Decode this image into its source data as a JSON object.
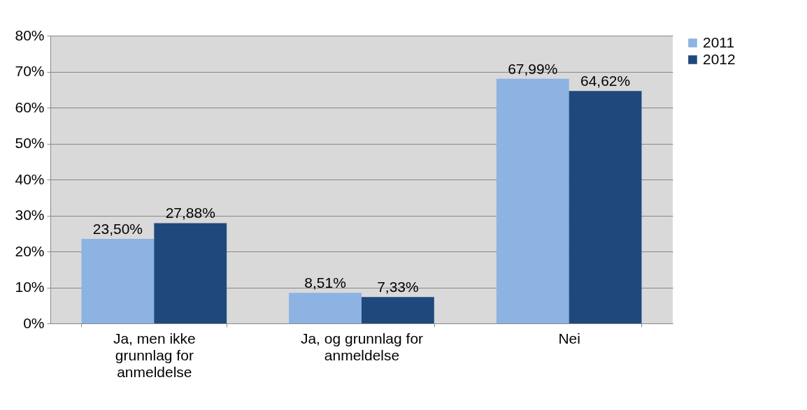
{
  "chart_data": {
    "type": "bar",
    "categories": [
      "Ja, men ikke grunnlag for anmeldelse",
      "Ja, og grunnlag for anmeldelse",
      "Nei"
    ],
    "series": [
      {
        "name": "2011",
        "color": "#8db3e2",
        "values": [
          23.5,
          8.51,
          67.99
        ],
        "value_labels": [
          "23,50%",
          "8,51%",
          "67,99%"
        ]
      },
      {
        "name": "2012",
        "color": "#1f497d",
        "values": [
          27.88,
          7.33,
          64.62
        ],
        "value_labels": [
          "27,88%",
          "7,33%",
          "64,62%"
        ]
      }
    ],
    "ylim": [
      0,
      80
    ],
    "yticks": [
      {
        "value": 0,
        "label": "0%"
      },
      {
        "value": 10,
        "label": "10%"
      },
      {
        "value": 20,
        "label": "20%"
      },
      {
        "value": 30,
        "label": "30%"
      },
      {
        "value": 40,
        "label": "40%"
      },
      {
        "value": 50,
        "label": "50%"
      },
      {
        "value": 60,
        "label": "60%"
      },
      {
        "value": 70,
        "label": "70%"
      },
      {
        "value": 80,
        "label": "80%"
      }
    ],
    "grid": "y",
    "legend": "right"
  }
}
